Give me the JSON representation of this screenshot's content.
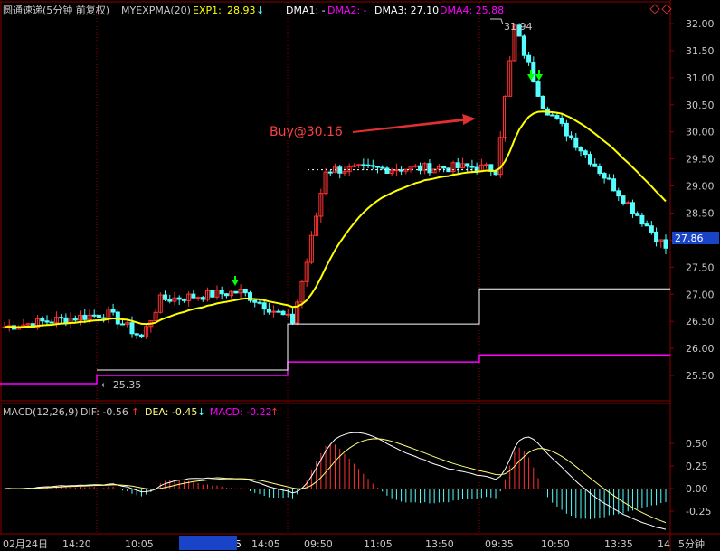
{
  "header": {
    "title": "圆通速递(5分钟 前复权)",
    "indicator": "MYEXPMA(20)",
    "exp1_label": "EXP1:",
    "exp1_value": "28.93",
    "exp1_arrow": "↓",
    "dma1": "DMA1: -",
    "dma2": "DMA2: -",
    "dma3": "DMA3: 27.10",
    "dma4": "DMA4: 25.88"
  },
  "price_axis": {
    "ticks": [
      "32.00",
      "31.50",
      "31.00",
      "30.50",
      "30.00",
      "29.50",
      "29.00",
      "28.50",
      "28.00",
      "27.50",
      "27.00",
      "26.50",
      "26.00",
      "25.50"
    ],
    "current_price": "27.86"
  },
  "annotations": {
    "buy": "Buy@30.16",
    "high": "31.94",
    "low": "← 25.35"
  },
  "macd_header": {
    "name": "MACD(12,26,9)",
    "dif": "DIF: -0.56",
    "dif_arrow": "↑",
    "dea": "DEA: -0.45",
    "dea_arrow": "↓",
    "macd": "MACD: -0.22",
    "macd_arrow": "↑"
  },
  "macd_axis": {
    "ticks": [
      "0.50",
      "0.25",
      "0.00",
      "-0.25"
    ]
  },
  "time_axis": {
    "labels": [
      "02月24日",
      "14:20",
      "10:05",
      "02/27 11:15",
      "14:05",
      "09:50",
      "11:05",
      "13:50",
      "09:35",
      "10:50",
      "13:35",
      "14"
    ],
    "period": "5分钟"
  },
  "colors": {
    "background": "#000000",
    "grid": "#8b0000",
    "up": "#ff3232",
    "down": "#54ffff",
    "exp1": "#ffff00",
    "dma_white": "#ffffff",
    "dma_magenta": "#ff00ff",
    "dea": "#ffff7f",
    "axis_text": "#c8c8c8",
    "signal_green": "#00ff00",
    "buy_arrow": "#e03030"
  },
  "chart_data": {
    "type": "candlestick",
    "ylim": [
      25.2,
      32.1
    ],
    "macd_ylim": [
      -0.45,
      0.75
    ],
    "price_close_key_points": [
      {
        "x": 0,
        "y": 26.4
      },
      {
        "x": 22,
        "y": 26.65
      },
      {
        "x": 29,
        "y": 26.2
      },
      {
        "x": 33,
        "y": 26.9
      },
      {
        "x": 50,
        "y": 27.05
      },
      {
        "x": 61,
        "y": 26.5
      },
      {
        "x": 64,
        "y": 27.6
      },
      {
        "x": 68,
        "y": 29.3
      },
      {
        "x": 100,
        "y": 29.35
      },
      {
        "x": 104,
        "y": 29.3
      },
      {
        "x": 108,
        "y": 31.94
      },
      {
        "x": 114,
        "y": 30.5
      },
      {
        "x": 140,
        "y": 27.86
      }
    ],
    "exp1_last": 28.93,
    "dma3_last": 27.1,
    "dma4_last": 25.88,
    "high": 31.94,
    "low": 25.35,
    "buy_price": 30.16,
    "macd_last": {
      "dif": -0.56,
      "dea": -0.45,
      "macd": -0.22
    }
  }
}
